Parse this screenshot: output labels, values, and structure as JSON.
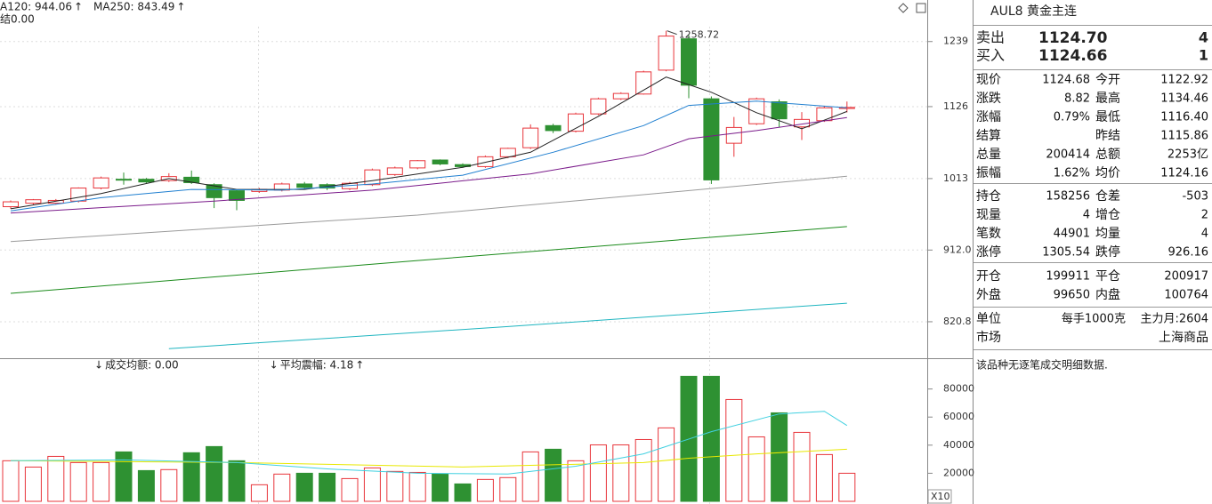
{
  "chart_data": [
    {
      "type": "candlestick",
      "subtitle": "结0.00",
      "legend": [
        {
          "text": "A120: 944.06",
          "color": "#1a8a1a",
          "suffix": "↑"
        },
        {
          "text": "MA250: 843.49",
          "color": "#1fb5c0",
          "suffix": "↑"
        }
      ],
      "open": [
        972,
        977,
        977,
        980,
        999,
        1012,
        1012,
        1010,
        1015,
        1004,
        995,
        994,
        996,
        1005,
        1004,
        998,
        1004,
        1019,
        1029,
        1041,
        1034,
        1031,
        1046,
        1060,
        1095,
        1086,
        1114,
        1139,
        1147,
        1188,
        1244,
        1139,
        1067,
        1098,
        1134,
        1093,
        1103,
        1122.92
      ],
      "high": [
        981,
        983,
        983,
        1000,
        1016,
        1022,
        1014,
        1021,
        1025,
        1006,
        996,
        999,
        1007,
        1008,
        1006,
        1008,
        1028,
        1031,
        1041,
        1042,
        1036,
        1048,
        1060,
        1097,
        1098,
        1116,
        1141,
        1150,
        1187,
        1258.72,
        1251,
        1143,
        1109,
        1141,
        1138,
        1117,
        1127,
        1134.46
      ],
      "low": [
        969,
        975,
        975,
        978,
        997,
        1004,
        1006,
        1008,
        1005,
        970,
        967,
        992,
        994,
        997,
        996,
        996,
        1002,
        1017,
        1027,
        1033,
        1029,
        1029,
        1044,
        1058,
        1083,
        1084,
        1112,
        1137,
        1146,
        1186,
        1140,
        1005,
        1046,
        1096,
        1092,
        1072,
        1101,
        1116.4
      ],
      "close": [
        979,
        982,
        981,
        999,
        1014,
        1011,
        1008,
        1016,
        1007,
        985,
        981,
        997,
        1005,
        1000,
        999,
        1006,
        1026,
        1029,
        1040,
        1035,
        1031,
        1046,
        1059,
        1091,
        1087,
        1114,
        1139,
        1148,
        1185,
        1249,
        1162,
        1011,
        1092,
        1139,
        1106,
        1105,
        1124,
        1124.68
      ],
      "up_color": "#e8353b",
      "down_color": "#2e9132",
      "series": [
        {
          "color": "#222222",
          "x": [
            0,
            4,
            7,
            10,
            13,
            16,
            20,
            23,
            26,
            29,
            31,
            33,
            35,
            37
          ],
          "values": [
            969,
            991,
            1013,
            997,
            997,
            1010,
            1030,
            1053,
            1110,
            1176,
            1150,
            1116,
            1090,
            1118
          ]
        },
        {
          "color": "#1f7fd0",
          "x": [
            0,
            4,
            8,
            12,
            16,
            20,
            24,
            28,
            30,
            33,
            37
          ],
          "values": [
            966,
            985,
            997,
            996,
            1005,
            1018,
            1053,
            1095,
            1128,
            1135,
            1124
          ]
        },
        {
          "color": "#7a1a8a",
          "x": [
            0,
            9,
            16,
            23,
            28,
            30,
            33,
            37
          ],
          "values": [
            963,
            980,
            996,
            1020,
            1049,
            1074,
            1087,
            1108
          ]
        },
        {
          "color": "#9a9a9a",
          "x": [
            0,
            18,
            37
          ],
          "values": [
            923.4,
            960,
            1016.5
          ]
        },
        {
          "color": "#1a8a1a",
          "x": [
            0,
            18,
            37
          ],
          "values": [
            855.8,
            898,
            944.06
          ]
        },
        {
          "color": "#1fb5c0",
          "x": [
            7,
            22,
            37
          ],
          "values": [
            789,
            815,
            843.49
          ]
        }
      ],
      "ylim": [
        781,
        1317
      ],
      "log_scale": true,
      "yticks": [
        {
          "value": 820.8,
          "label": "820.8"
        },
        {
          "value": 912,
          "label": "912.0"
        },
        1013,
        1126,
        1239
      ],
      "grid": true
    },
    {
      "type": "bar",
      "legend": [
        {
          "prefix": "↓",
          "text": "成交均额: 0.00",
          "color": "#c020c0"
        },
        {
          "prefix": "↓",
          "text": "平均震幅: 4.18",
          "color": "#c020c0",
          "suffix": "↑"
        }
      ],
      "values": [
        28900,
        24400,
        32000,
        27600,
        27600,
        35200,
        21900,
        22600,
        34600,
        39000,
        28900,
        11800,
        19400,
        20000,
        20000,
        16200,
        23800,
        21300,
        20600,
        19400,
        12400,
        15600,
        16900,
        35200,
        37100,
        28900,
        40200,
        40200,
        44000,
        52300,
        89000,
        89000,
        72500,
        45900,
        63000,
        49100,
        33300,
        20000
      ],
      "series": [
        {
          "color": "#e8e800",
          "x": [
            0,
            10,
            20,
            28,
            30,
            33,
            37
          ],
          "values": [
            28900,
            27600,
            24400,
            27600,
            30700,
            33800,
            37100
          ]
        },
        {
          "color": "#40d0e0",
          "x": [
            0,
            5,
            10,
            14,
            18,
            22,
            25,
            28,
            31,
            34,
            36,
            37
          ],
          "values": [
            28900,
            29500,
            27600,
            23100,
            20000,
            19400,
            25000,
            33800,
            49600,
            62200,
            64100,
            54000
          ]
        }
      ],
      "ylim": [
        0,
        100000
      ],
      "yticks": [
        20000,
        40000,
        60000,
        80000
      ],
      "unit_label": "X10"
    }
  ],
  "quote": {
    "title": "AUL8 黄金主连",
    "orders": [
      [
        "卖出",
        "1124.70",
        "4"
      ],
      [
        "买入",
        "1124.66",
        "1"
      ]
    ],
    "stats": [
      [
        [
          "现价",
          "1124.68"
        ],
        [
          "今开",
          "1122.92"
        ]
      ],
      [
        [
          "涨跌",
          "8.82"
        ],
        [
          "最高",
          "1134.46"
        ]
      ],
      [
        [
          "涨幅",
          "0.79%"
        ],
        [
          "最低",
          "1116.40"
        ]
      ],
      [
        [
          "结算"
        ],
        [
          "昨结",
          "1115.86"
        ]
      ],
      [
        [
          "总量",
          "200414"
        ],
        [
          "总额",
          "2253亿"
        ]
      ],
      [
        [
          "振幅",
          "1.62%"
        ],
        [
          "均价",
          "1124.16"
        ]
      ]
    ],
    "positions": [
      [
        [
          "持仓",
          "158256"
        ],
        [
          "仓差",
          "-503"
        ]
      ],
      [
        [
          "现量",
          "4"
        ],
        [
          "增仓",
          "2"
        ]
      ],
      [
        [
          "笔数",
          "44901"
        ],
        [
          "均量",
          "4"
        ]
      ],
      [
        [
          "涨停",
          "1305.54"
        ],
        [
          "跌停",
          "926.16"
        ]
      ]
    ],
    "trades": [
      [
        [
          "开仓",
          "199911"
        ],
        [
          "平仓",
          "200917"
        ]
      ],
      [
        [
          "外盘",
          "99650"
        ],
        [
          "内盘",
          "100764"
        ]
      ]
    ],
    "info": [
      [
        "单位",
        "每手1000克",
        "主力月:2604"
      ],
      [
        "市场",
        "上海商品"
      ]
    ],
    "note": "该品种无逐笔成交明细数据."
  }
}
